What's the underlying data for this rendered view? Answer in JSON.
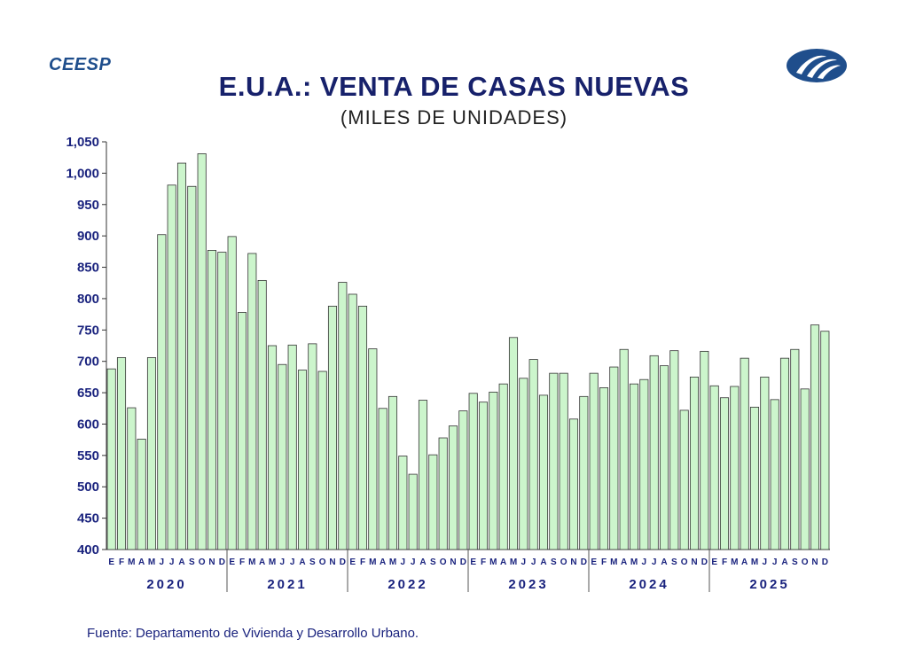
{
  "brand": "CEESP",
  "logo_icon": "ceesp-oval-logo",
  "chart_data": {
    "type": "bar",
    "title": "E.U.A.: VENTA DE CASAS NUEVAS",
    "subtitle": "(MILES DE UNIDADES)",
    "ylim": [
      400,
      1050
    ],
    "yticks": [
      "400",
      "450",
      "500",
      "550",
      "600",
      "650",
      "700",
      "750",
      "800",
      "850",
      "900",
      "950",
      "1,000",
      "1,050"
    ],
    "ytick_values": [
      400,
      450,
      500,
      550,
      600,
      650,
      700,
      750,
      800,
      850,
      900,
      950,
      1000,
      1050
    ],
    "categories": [
      "E",
      "F",
      "M",
      "A",
      "M",
      "J",
      "J",
      "A",
      "S",
      "O",
      "N",
      "D",
      "E",
      "F",
      "M",
      "A",
      "M",
      "J",
      "J",
      "A",
      "S",
      "O",
      "N",
      "D",
      "E",
      "F",
      "M",
      "A",
      "M",
      "J",
      "J",
      "A",
      "S",
      "O",
      "N",
      "D",
      "E",
      "F",
      "M",
      "A",
      "M",
      "J",
      "J",
      "A",
      "S",
      "O",
      "N",
      "D",
      "E",
      "F",
      "M",
      "A",
      "M",
      "J",
      "J",
      "A",
      "S",
      "O",
      "N",
      "D",
      "E",
      "F",
      "M",
      "A",
      "M",
      "J",
      "J",
      "A",
      "S",
      "O",
      "N",
      "D"
    ],
    "years": [
      "2020",
      "2021",
      "2022",
      "2023",
      "2024",
      "2025"
    ],
    "values": [
      688,
      706,
      626,
      576,
      706,
      902,
      981,
      1016,
      979,
      1031,
      877,
      874,
      899,
      778,
      872,
      829,
      725,
      695,
      726,
      686,
      728,
      684,
      788,
      826,
      807,
      788,
      720,
      625,
      644,
      549,
      520,
      638,
      551,
      578,
      597,
      621,
      649,
      635,
      651,
      664,
      738,
      673,
      703,
      646,
      681,
      681,
      608,
      644,
      681,
      658,
      691,
      719,
      664,
      671,
      709,
      693,
      717,
      622,
      675,
      716,
      661,
      642,
      660,
      705,
      627,
      675,
      639,
      705,
      719,
      656,
      758,
      748
    ],
    "bar_color": "#ccf5cc",
    "bar_stroke": "#333333"
  },
  "source": "Fuente: Departamento de Vivienda y Desarrollo Urbano."
}
